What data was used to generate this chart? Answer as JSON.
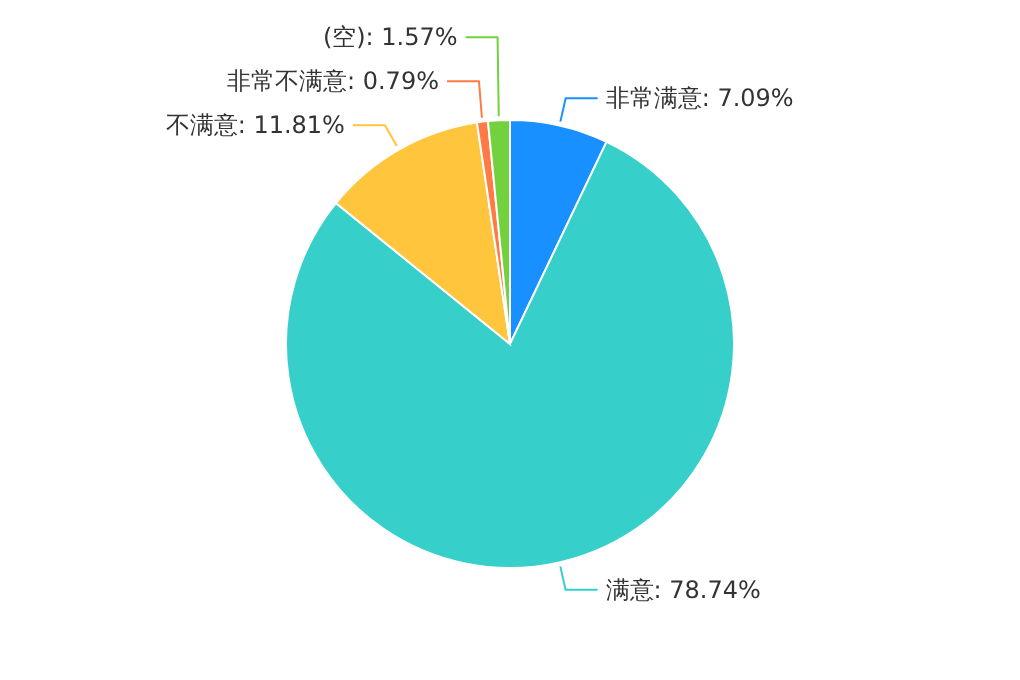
{
  "chart_data": {
    "type": "pie",
    "categories": [
      "非常满意",
      "满意",
      "不满意",
      "非常不满意",
      "(空)"
    ],
    "values": [
      7.09,
      78.74,
      11.81,
      0.79,
      1.57
    ],
    "value_labels": [
      "7.09%",
      "78.74%",
      "11.81%",
      "0.79%",
      "1.57%"
    ],
    "colors": [
      "#1890ff",
      "#36cfc9",
      "#ffc53d",
      "#ff7a45",
      "#73d13d"
    ]
  }
}
